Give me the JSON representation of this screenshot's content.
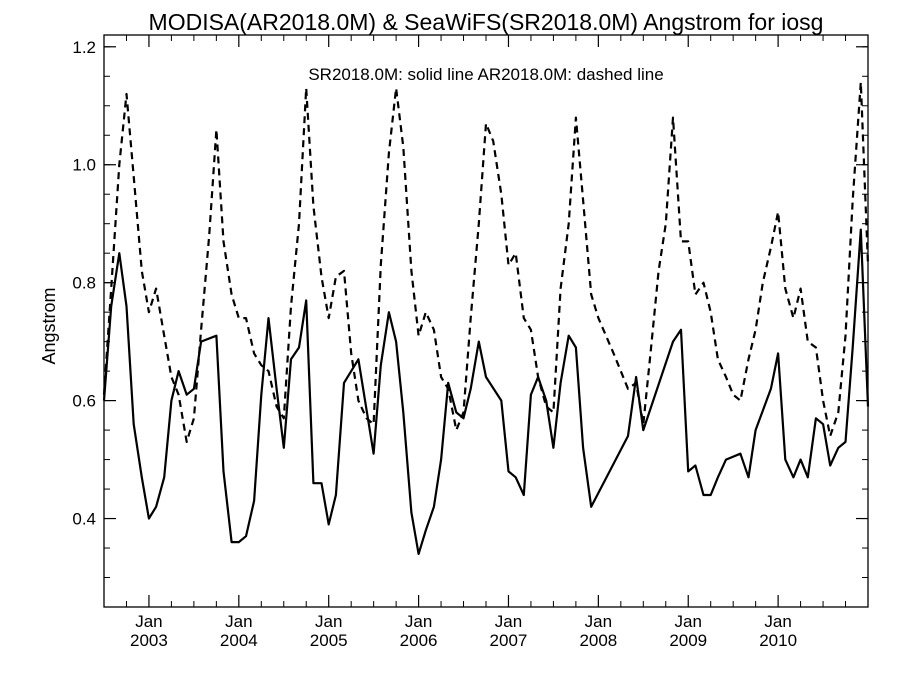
{
  "chart_data": {
    "type": "line",
    "title": "MODISA(AR2018.0M) & SeaWiFS(SR2018.0M)  Angstrom for iosg",
    "subtitle": "SR2018.0M: solid line   AR2018.0M: dashed line",
    "ylabel": "Angstrom",
    "xlabel": "",
    "xlim": [
      2002.5,
      2011.0
    ],
    "ylim": [
      0.25,
      1.22
    ],
    "yticks": [
      0.4,
      0.6,
      0.8,
      1.0,
      1.2
    ],
    "ytick_labels": [
      "0.4",
      "0.6",
      "0.8",
      "1.0",
      "1.2"
    ],
    "xticks": [
      {
        "month": "Jan",
        "year": "2003",
        "x": 2003.0
      },
      {
        "month": "Jan",
        "year": "2004",
        "x": 2004.0
      },
      {
        "month": "Jan",
        "year": "2005",
        "x": 2005.0
      },
      {
        "month": "Jan",
        "year": "2006",
        "x": 2006.0
      },
      {
        "month": "Jan",
        "year": "2007",
        "x": 2007.0
      },
      {
        "month": "Jan",
        "year": "2008",
        "x": 2008.0
      },
      {
        "month": "Jan",
        "year": "2009",
        "x": 2009.0
      },
      {
        "month": "Jan",
        "year": "2010",
        "x": 2010.0
      }
    ],
    "grid": false,
    "series": [
      {
        "name": "SR2018.0M",
        "style": "solid",
        "color": "#000000",
        "points": [
          [
            2002.5,
            0.6
          ],
          [
            2002.58,
            0.76
          ],
          [
            2002.67,
            0.85
          ],
          [
            2002.75,
            0.76
          ],
          [
            2002.83,
            0.56
          ],
          [
            2002.92,
            0.47
          ],
          [
            2003.0,
            0.4
          ],
          [
            2003.08,
            0.42
          ],
          [
            2003.17,
            0.47
          ],
          [
            2003.25,
            0.6
          ],
          [
            2003.33,
            0.65
          ],
          [
            2003.42,
            0.61
          ],
          [
            2003.5,
            0.62
          ],
          [
            2003.58,
            0.7
          ],
          [
            2003.75,
            0.71
          ],
          [
            2003.83,
            0.48
          ],
          [
            2003.92,
            0.36
          ],
          [
            2004.0,
            0.36
          ],
          [
            2004.08,
            0.37
          ],
          [
            2004.17,
            0.43
          ],
          [
            2004.25,
            0.61
          ],
          [
            2004.33,
            0.74
          ],
          [
            2004.42,
            0.62
          ],
          [
            2004.5,
            0.52
          ],
          [
            2004.58,
            0.67
          ],
          [
            2004.67,
            0.69
          ],
          [
            2004.75,
            0.77
          ],
          [
            2004.83,
            0.46
          ],
          [
            2004.92,
            0.46
          ],
          [
            2005.0,
            0.39
          ],
          [
            2005.08,
            0.44
          ],
          [
            2005.17,
            0.63
          ],
          [
            2005.33,
            0.67
          ],
          [
            2005.5,
            0.51
          ],
          [
            2005.58,
            0.66
          ],
          [
            2005.67,
            0.75
          ],
          [
            2005.75,
            0.7
          ],
          [
            2005.83,
            0.58
          ],
          [
            2005.92,
            0.41
          ],
          [
            2006.0,
            0.34
          ],
          [
            2006.08,
            0.38
          ],
          [
            2006.17,
            0.42
          ],
          [
            2006.25,
            0.5
          ],
          [
            2006.33,
            0.63
          ],
          [
            2006.42,
            0.58
          ],
          [
            2006.5,
            0.57
          ],
          [
            2006.58,
            0.62
          ],
          [
            2006.67,
            0.7
          ],
          [
            2006.75,
            0.64
          ],
          [
            2006.92,
            0.6
          ],
          [
            2007.0,
            0.48
          ],
          [
            2007.08,
            0.47
          ],
          [
            2007.17,
            0.44
          ],
          [
            2007.25,
            0.61
          ],
          [
            2007.33,
            0.64
          ],
          [
            2007.42,
            0.6
          ],
          [
            2007.5,
            0.52
          ],
          [
            2007.58,
            0.63
          ],
          [
            2007.67,
            0.71
          ],
          [
            2007.75,
            0.69
          ],
          [
            2007.83,
            0.52
          ],
          [
            2007.92,
            0.42
          ],
          [
            2008.33,
            0.54
          ],
          [
            2008.42,
            0.64
          ],
          [
            2008.5,
            0.55
          ],
          [
            2008.83,
            0.7
          ],
          [
            2008.92,
            0.72
          ],
          [
            2009.0,
            0.48
          ],
          [
            2009.08,
            0.49
          ],
          [
            2009.17,
            0.44
          ],
          [
            2009.25,
            0.44
          ],
          [
            2009.33,
            0.47
          ],
          [
            2009.42,
            0.5
          ],
          [
            2009.58,
            0.51
          ],
          [
            2009.67,
            0.47
          ],
          [
            2009.75,
            0.55
          ],
          [
            2009.92,
            0.62
          ],
          [
            2010.0,
            0.68
          ],
          [
            2010.08,
            0.5
          ],
          [
            2010.17,
            0.47
          ],
          [
            2010.25,
            0.5
          ],
          [
            2010.33,
            0.47
          ],
          [
            2010.42,
            0.57
          ],
          [
            2010.5,
            0.56
          ],
          [
            2010.58,
            0.49
          ],
          [
            2010.67,
            0.52
          ],
          [
            2010.75,
            0.53
          ],
          [
            2010.83,
            0.69
          ],
          [
            2010.92,
            0.89
          ],
          [
            2011.0,
            0.59
          ]
        ]
      },
      {
        "name": "AR2018.0M",
        "style": "dashed",
        "color": "#000000",
        "points": [
          [
            2002.5,
            0.61
          ],
          [
            2002.58,
            0.79
          ],
          [
            2002.67,
            1.0
          ],
          [
            2002.75,
            1.12
          ],
          [
            2002.83,
            0.98
          ],
          [
            2002.92,
            0.82
          ],
          [
            2003.0,
            0.75
          ],
          [
            2003.08,
            0.79
          ],
          [
            2003.17,
            0.71
          ],
          [
            2003.25,
            0.64
          ],
          [
            2003.33,
            0.61
          ],
          [
            2003.42,
            0.53
          ],
          [
            2003.5,
            0.57
          ],
          [
            2003.58,
            0.72
          ],
          [
            2003.67,
            0.88
          ],
          [
            2003.75,
            1.06
          ],
          [
            2003.83,
            0.87
          ],
          [
            2003.92,
            0.78
          ],
          [
            2004.0,
            0.74
          ],
          [
            2004.08,
            0.74
          ],
          [
            2004.17,
            0.68
          ],
          [
            2004.25,
            0.66
          ],
          [
            2004.33,
            0.65
          ],
          [
            2004.42,
            0.59
          ],
          [
            2004.5,
            0.57
          ],
          [
            2004.58,
            0.76
          ],
          [
            2004.67,
            0.9
          ],
          [
            2004.75,
            1.13
          ],
          [
            2004.83,
            0.93
          ],
          [
            2004.92,
            0.81
          ],
          [
            2005.0,
            0.74
          ],
          [
            2005.08,
            0.81
          ],
          [
            2005.17,
            0.82
          ],
          [
            2005.25,
            0.68
          ],
          [
            2005.33,
            0.6
          ],
          [
            2005.42,
            0.57
          ],
          [
            2005.5,
            0.56
          ],
          [
            2005.58,
            0.83
          ],
          [
            2005.67,
            1.02
          ],
          [
            2005.75,
            1.13
          ],
          [
            2005.83,
            1.03
          ],
          [
            2005.92,
            0.82
          ],
          [
            2006.0,
            0.71
          ],
          [
            2006.08,
            0.75
          ],
          [
            2006.17,
            0.72
          ],
          [
            2006.25,
            0.64
          ],
          [
            2006.33,
            0.62
          ],
          [
            2006.42,
            0.55
          ],
          [
            2006.5,
            0.58
          ],
          [
            2006.58,
            0.74
          ],
          [
            2006.67,
            0.9
          ],
          [
            2006.75,
            1.07
          ],
          [
            2006.83,
            1.04
          ],
          [
            2006.92,
            0.95
          ],
          [
            2007.0,
            0.83
          ],
          [
            2007.08,
            0.85
          ],
          [
            2007.17,
            0.74
          ],
          [
            2007.25,
            0.72
          ],
          [
            2007.33,
            0.64
          ],
          [
            2007.42,
            0.59
          ],
          [
            2007.5,
            0.58
          ],
          [
            2007.58,
            0.79
          ],
          [
            2007.67,
            0.9
          ],
          [
            2007.75,
            1.08
          ],
          [
            2007.83,
            0.94
          ],
          [
            2007.92,
            0.78
          ],
          [
            2008.0,
            0.74
          ],
          [
            2008.17,
            0.68
          ],
          [
            2008.33,
            0.62
          ],
          [
            2008.42,
            0.63
          ],
          [
            2008.5,
            0.56
          ],
          [
            2008.58,
            0.68
          ],
          [
            2008.67,
            0.82
          ],
          [
            2008.75,
            0.9
          ],
          [
            2008.83,
            1.08
          ],
          [
            2008.92,
            0.87
          ],
          [
            2009.0,
            0.87
          ],
          [
            2009.08,
            0.78
          ],
          [
            2009.17,
            0.8
          ],
          [
            2009.25,
            0.75
          ],
          [
            2009.33,
            0.67
          ],
          [
            2009.42,
            0.64
          ],
          [
            2009.5,
            0.61
          ],
          [
            2009.58,
            0.6
          ],
          [
            2009.67,
            0.67
          ],
          [
            2009.75,
            0.72
          ],
          [
            2009.83,
            0.8
          ],
          [
            2009.92,
            0.86
          ],
          [
            2010.0,
            0.92
          ],
          [
            2010.08,
            0.79
          ],
          [
            2010.17,
            0.74
          ],
          [
            2010.25,
            0.79
          ],
          [
            2010.33,
            0.7
          ],
          [
            2010.42,
            0.69
          ],
          [
            2010.5,
            0.6
          ],
          [
            2010.58,
            0.54
          ],
          [
            2010.67,
            0.58
          ],
          [
            2010.75,
            0.71
          ],
          [
            2010.83,
            0.94
          ],
          [
            2010.92,
            1.14
          ],
          [
            2011.0,
            0.83
          ]
        ]
      }
    ]
  }
}
